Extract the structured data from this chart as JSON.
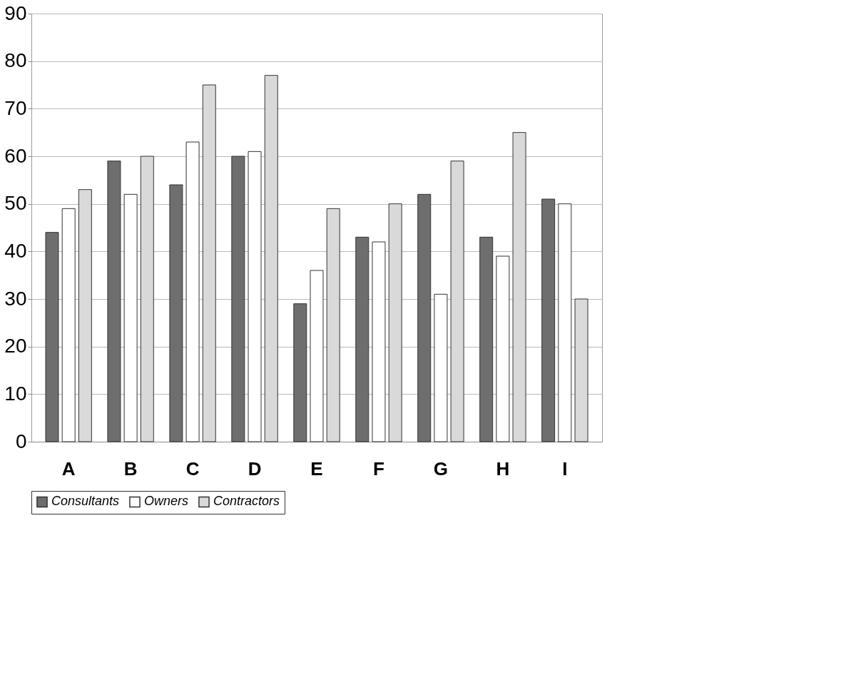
{
  "chart_data": {
    "type": "bar",
    "categories": [
      "A",
      "B",
      "C",
      "D",
      "E",
      "F",
      "G",
      "H",
      "I"
    ],
    "series": [
      {
        "name": "Consultants",
        "color": "#6e6e6e",
        "values": [
          44,
          59,
          54,
          60,
          29,
          43,
          52,
          43,
          51
        ]
      },
      {
        "name": "Owners",
        "color": "#ffffff",
        "values": [
          49,
          52,
          63,
          61,
          36,
          42,
          31,
          39,
          50
        ]
      },
      {
        "name": "Contractors",
        "color": "#d9d9d9",
        "values": [
          53,
          60,
          75,
          77,
          49,
          50,
          59,
          65,
          30
        ]
      }
    ],
    "ylim": [
      0,
      90
    ],
    "yticks": [
      0,
      10,
      20,
      30,
      40,
      50,
      60,
      70,
      80,
      90
    ],
    "grid": "y",
    "legend": "bottom"
  }
}
